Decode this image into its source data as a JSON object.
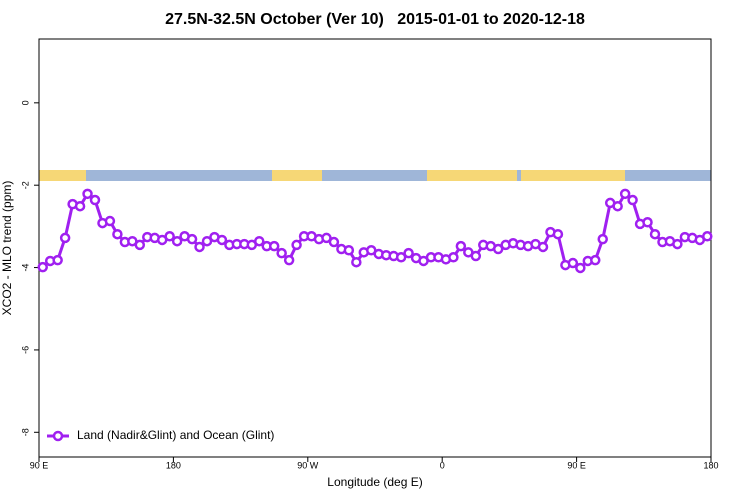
{
  "chart_data": {
    "type": "line",
    "title": "27.5N-32.5N October (Ver 10)   2015-01-01 to 2020-12-18",
    "xlabel": "Longitude (deg E)",
    "ylabel": "XCO2 - MLO trend (ppm)",
    "xlim": [
      90,
      540
    ],
    "ylim": [
      -8.6,
      1.55
    ],
    "xticks": [
      {
        "value": 90,
        "label": "90 E"
      },
      {
        "value": 180,
        "label": "180"
      },
      {
        "value": 270,
        "label": "90 W"
      },
      {
        "value": 360,
        "label": "0"
      },
      {
        "value": 450,
        "label": "90 E"
      },
      {
        "value": 540,
        "label": "180"
      }
    ],
    "yticks": [
      0,
      -2,
      -4,
      -6,
      -8
    ],
    "grid": false,
    "legend": "lower left",
    "series": [
      {
        "name": "Land (Nadir&Glint) and Ocean (Glint)",
        "color": "#a020f0",
        "x": [
          92.5,
          97.5,
          102.5,
          107.5,
          112.5,
          117.5,
          122.5,
          127.5,
          132.5,
          137.5,
          142.5,
          147.5,
          152.5,
          157.5,
          162.5,
          167.5,
          172.5,
          177.5,
          182.5,
          187.5,
          192.5,
          197.5,
          202.5,
          207.5,
          212.5,
          217.5,
          222.5,
          227.5,
          232.5,
          237.5,
          242.5,
          247.5,
          252.5,
          257.5,
          262.5,
          267.5,
          272.5,
          277.5,
          282.5,
          287.5,
          292.5,
          297.5,
          302.5,
          307.5,
          312.5,
          317.5,
          322.5,
          327.5,
          332.5,
          337.5,
          342.5,
          347.5,
          352.5,
          357.5,
          362.5,
          367.5,
          372.5,
          377.5,
          382.5,
          387.5,
          392.5,
          397.5,
          402.5,
          407.5,
          412.5,
          417.5,
          422.5,
          427.5,
          432.5,
          437.5,
          442.5,
          447.5,
          452.5,
          457.5,
          462.5,
          467.5,
          472.5,
          477.5,
          482.5,
          487.5,
          492.5,
          497.5,
          502.5,
          507.5,
          512.5,
          517.5,
          522.5,
          527.5,
          532.5,
          537.5
        ],
        "values": [
          -3.99,
          -3.84,
          -3.82,
          -3.28,
          -2.46,
          -2.51,
          -2.21,
          -2.36,
          -2.92,
          -2.87,
          -3.19,
          -3.38,
          -3.36,
          -3.45,
          -3.26,
          -3.28,
          -3.33,
          -3.24,
          -3.36,
          -3.24,
          -3.31,
          -3.5,
          -3.36,
          -3.26,
          -3.33,
          -3.45,
          -3.43,
          -3.43,
          -3.45,
          -3.36,
          -3.48,
          -3.48,
          -3.65,
          -3.82,
          -3.45,
          -3.24,
          -3.24,
          -3.31,
          -3.28,
          -3.38,
          -3.55,
          -3.58,
          -3.87,
          -3.63,
          -3.58,
          -3.67,
          -3.7,
          -3.72,
          -3.75,
          -3.65,
          -3.77,
          -3.84,
          -3.75,
          -3.75,
          -3.8,
          -3.75,
          -3.48,
          -3.63,
          -3.72,
          -3.45,
          -3.48,
          -3.55,
          -3.45,
          -3.41,
          -3.45,
          -3.48,
          -3.43,
          -3.5,
          -3.14,
          -3.19,
          -3.94,
          -3.89,
          -4.01,
          -3.84,
          -3.82,
          -3.31,
          -2.43,
          -2.51,
          -2.21,
          -2.36,
          -2.94,
          -2.9,
          -3.19,
          -3.38,
          -3.36,
          -3.43,
          -3.26,
          -3.28,
          -3.33,
          -3.24
        ]
      }
    ]
  }
}
